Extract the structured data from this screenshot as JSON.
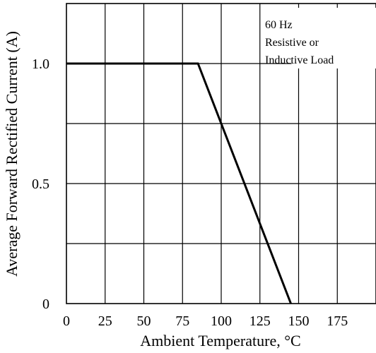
{
  "chart_data": {
    "type": "line",
    "title": "",
    "xlabel": "Ambient Temperature, °C",
    "ylabel": "Average Forward Rectified Current (A)",
    "xlim": [
      0,
      200
    ],
    "ylim": [
      0,
      1.25
    ],
    "x_ticks": [
      0,
      25,
      50,
      75,
      100,
      125,
      150,
      175
    ],
    "x_tick_labels": [
      "0",
      "25",
      "50",
      "75",
      "100",
      "125",
      "150",
      "175"
    ],
    "y_ticks": [
      0,
      0.5,
      1.0
    ],
    "y_tick_labels": [
      "0",
      "0.5",
      "1.0"
    ],
    "x_grid": [
      25,
      50,
      75,
      100,
      125,
      150,
      175
    ],
    "y_grid": [
      0.25,
      0.5,
      0.75,
      1.0
    ],
    "grid": true,
    "series": [
      {
        "x": [
          0,
          85,
          145
        ],
        "y": [
          1.0,
          1.0,
          0
        ]
      }
    ],
    "annotation": {
      "lines": [
        "60 Hz",
        "Resistive or",
        "Inductive Load"
      ]
    }
  }
}
